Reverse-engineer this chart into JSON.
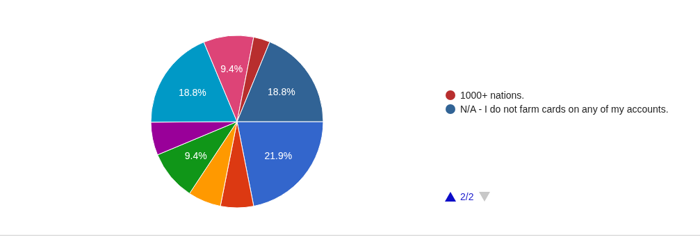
{
  "chart_data": {
    "type": "pie",
    "categories": [
      null,
      null,
      null,
      null,
      null,
      null,
      null,
      "1000+ nations.",
      "N/A - I do not farm cards on any of my accounts."
    ],
    "values": [
      21.9,
      6.2,
      6.2,
      9.4,
      6.2,
      18.8,
      9.4,
      3.1,
      18.8
    ],
    "colors": [
      "#3366cc",
      "#dc3912",
      "#ff9900",
      "#109618",
      "#990099",
      "#0099c6",
      "#dd4477",
      "#b82e2e",
      "#316395"
    ],
    "value_labels": [
      "21.9%",
      null,
      null,
      "9.4%",
      null,
      "18.8%",
      "9.4%",
      null,
      "18.8%"
    ],
    "legend": "right",
    "annotations": [
      "2/2"
    ]
  }
}
